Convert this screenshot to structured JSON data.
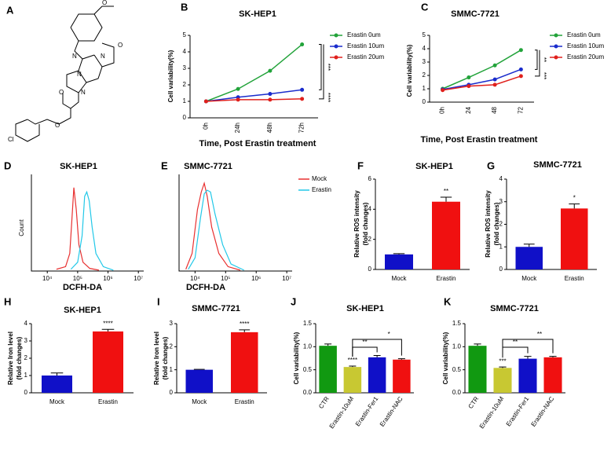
{
  "panels": [
    "A",
    "B",
    "C",
    "D",
    "E",
    "F",
    "G",
    "H",
    "I",
    "J",
    "K"
  ],
  "structure": {
    "atoms": [
      "O",
      "O",
      "N",
      "N",
      "N",
      "N",
      "O",
      "O",
      "Cl"
    ]
  },
  "chart_data": [
    {
      "type": "line",
      "title": "SK-HEP1",
      "categories": [
        "0h",
        "24h",
        "48h",
        "72h"
      ],
      "ylim": [
        0,
        5
      ],
      "yticks": [
        0,
        1,
        2,
        3,
        4,
        5
      ],
      "xlabel": "Time, Post Erastin treatment",
      "ylabel": "Cell variability(%)",
      "series": [
        {
          "name": "Erastin  0um",
          "color": "#22a33a",
          "values": [
            1,
            1.75,
            2.85,
            4.45
          ]
        },
        {
          "name": "Erastin 10um",
          "color": "#1a2ccc",
          "values": [
            1,
            1.25,
            1.45,
            1.7
          ]
        },
        {
          "name": "Erastin 20um",
          "color": "#e0201c",
          "values": [
            1,
            1.1,
            1.1,
            1.15
          ]
        }
      ],
      "annotations": [
        "***",
        "****"
      ]
    },
    {
      "type": "line",
      "title": "SMMC-7721",
      "categories": [
        "0h",
        "24",
        "48",
        "72"
      ],
      "ylim": [
        0,
        5
      ],
      "yticks": [
        0,
        1,
        2,
        3,
        4,
        5
      ],
      "xlabel": "Time, Post Erastin treatment",
      "ylabel": "Cell variability(%)",
      "series": [
        {
          "name": "Erastin  0um",
          "color": "#22a33a",
          "values": [
            1,
            1.85,
            2.75,
            3.9
          ]
        },
        {
          "name": "Erastin 10um",
          "color": "#1a2ccc",
          "values": [
            0.95,
            1.3,
            1.7,
            2.45
          ]
        },
        {
          "name": "Erastin 20um",
          "color": "#e0201c",
          "values": [
            0.9,
            1.2,
            1.3,
            1.95
          ]
        }
      ],
      "annotations": [
        "**",
        "***"
      ]
    },
    {
      "type": "density",
      "title": "SK-HEP1",
      "xlabel": "DCFH-DA",
      "ylabel": "Count",
      "xlog": true,
      "xlim": [
        3000,
        15000000
      ],
      "ylim": [
        0,
        110
      ],
      "xticks": [
        {
          "value": 10000,
          "label": "10⁴"
        },
        {
          "value": 100000,
          "label": "10⁵"
        },
        {
          "value": 1000000,
          "label": "10⁶"
        },
        {
          "value": 10000000,
          "label": "10⁷"
        }
      ],
      "series": [
        {
          "color": "#e83030",
          "x": [
            20000,
            40000,
            55000,
            65000,
            75000,
            90000,
            110000,
            150000,
            250000,
            500000
          ],
          "values": [
            2,
            5,
            20,
            60,
            95,
            70,
            30,
            10,
            3,
            1
          ]
        },
        {
          "color": "#22c8e8",
          "x": [
            60000,
            100000,
            140000,
            170000,
            200000,
            240000,
            300000,
            400000,
            700000,
            1500000
          ],
          "values": [
            2,
            10,
            40,
            85,
            90,
            80,
            50,
            20,
            5,
            1
          ]
        }
      ]
    },
    {
      "type": "density",
      "title": "SMMC-7721",
      "xlabel": "DCFH-DA",
      "xlog": true,
      "xlim": [
        3000,
        15000000
      ],
      "ylim": [
        0,
        110
      ],
      "xticks": [
        {
          "value": 10000,
          "label": "10⁴"
        },
        {
          "value": 100000,
          "label": "10⁵"
        },
        {
          "value": 1000000,
          "label": "10⁶"
        },
        {
          "value": 10000000,
          "label": "10⁷"
        }
      ],
      "series": [
        {
          "name": "Mock",
          "color": "#e83030",
          "x": [
            5000,
            8000,
            12000,
            16000,
            20000,
            25000,
            35000,
            60000,
            120000,
            300000
          ],
          "values": [
            2,
            20,
            70,
            90,
            100,
            85,
            50,
            20,
            5,
            1
          ]
        },
        {
          "name": "Erastin",
          "color": "#22c8e8",
          "x": [
            6000,
            10000,
            15000,
            20000,
            25000,
            32000,
            45000,
            80000,
            150000,
            400000
          ],
          "values": [
            2,
            15,
            60,
            88,
            92,
            90,
            65,
            30,
            8,
            1
          ]
        }
      ]
    },
    {
      "type": "bar",
      "title": "SK-HEP1",
      "categories": [
        "Mock",
        "Erastin"
      ],
      "values": [
        1,
        4.5
      ],
      "errors": [
        0.05,
        0.3
      ],
      "colors": [
        "#1010c8",
        "#f01010"
      ],
      "ylim": [
        0,
        6
      ],
      "yticks": [
        0,
        2,
        4,
        6
      ],
      "ylabel": [
        "Relative ROS intensity",
        "(fold changes)"
      ],
      "annotations": [
        "**"
      ]
    },
    {
      "type": "bar",
      "title": "SMMC-7721",
      "categories": [
        "Mock",
        "Erastin"
      ],
      "values": [
        1,
        2.7
      ],
      "errors": [
        0.12,
        0.2
      ],
      "colors": [
        "#1010c8",
        "#f01010"
      ],
      "ylim": [
        0,
        4
      ],
      "yticks": [
        0,
        1,
        2,
        3,
        4
      ],
      "ylabel": [
        "Relative ROS intensity",
        "(fold changes)"
      ],
      "annotations": [
        "*"
      ]
    },
    {
      "type": "bar",
      "title": "SK-HEP1",
      "categories": [
        "Mock",
        "Erastin"
      ],
      "values": [
        1,
        3.55
      ],
      "errors": [
        0.15,
        0.12
      ],
      "colors": [
        "#1010c8",
        "#f01010"
      ],
      "ylim": [
        0,
        4
      ],
      "yticks": [
        0,
        1,
        2,
        3,
        4
      ],
      "ylabel": [
        "Relative Iron level",
        "(fold changes)"
      ],
      "annotations": [
        "****"
      ]
    },
    {
      "type": "bar",
      "title": "SMMC-7721",
      "categories": [
        "Mock",
        "Erastin"
      ],
      "values": [
        1,
        2.63
      ],
      "errors": [
        0.02,
        0.1
      ],
      "colors": [
        "#1010c8",
        "#f01010"
      ],
      "ylim": [
        0,
        3
      ],
      "yticks": [
        0,
        1,
        2,
        3
      ],
      "ylabel": [
        "Relative Iron level",
        "(fold changes)"
      ],
      "annotations": [
        "****"
      ]
    },
    {
      "type": "bar",
      "title": "SK-HEP1",
      "categories": [
        "CTR",
        "Erastin-10uM",
        "Erastin-Fer1",
        "Erastin-NAC"
      ],
      "values": [
        1.02,
        0.56,
        0.77,
        0.72
      ],
      "errors": [
        0.04,
        0.02,
        0.04,
        0.02
      ],
      "colors": [
        "#119911",
        "#c8c832",
        "#1010c8",
        "#f01010"
      ],
      "ylim": [
        0,
        1.5
      ],
      "yticks": [
        {
          "value": 0,
          "label": "0.0"
        },
        {
          "value": 0.5,
          "label": "0.5"
        },
        {
          "value": 1,
          "label": "1.0"
        },
        {
          "value": 1.5,
          "label": "1.5"
        }
      ],
      "ylabel": [
        "Cell variability(%)"
      ],
      "annotations": [
        "****",
        "**",
        "*"
      ]
    },
    {
      "type": "bar",
      "title": "SMMC-7721",
      "categories": [
        "CTR",
        "Erastin-10uM",
        "Erastin-Fer1",
        "Erastin-NAC"
      ],
      "values": [
        1.02,
        0.54,
        0.74,
        0.77
      ],
      "errors": [
        0.04,
        0.02,
        0.05,
        0.02
      ],
      "colors": [
        "#119911",
        "#c8c832",
        "#1010c8",
        "#f01010"
      ],
      "ylim": [
        0,
        1.5
      ],
      "yticks": [
        {
          "value": 0,
          "label": "0.0"
        },
        {
          "value": 0.5,
          "label": "0.5"
        },
        {
          "value": 1,
          "label": "1.0"
        },
        {
          "value": 1.5,
          "label": "1.5"
        }
      ],
      "ylabel": [
        "Cell variability(%)"
      ],
      "annotations": [
        "***",
        "**",
        "**"
      ]
    }
  ]
}
